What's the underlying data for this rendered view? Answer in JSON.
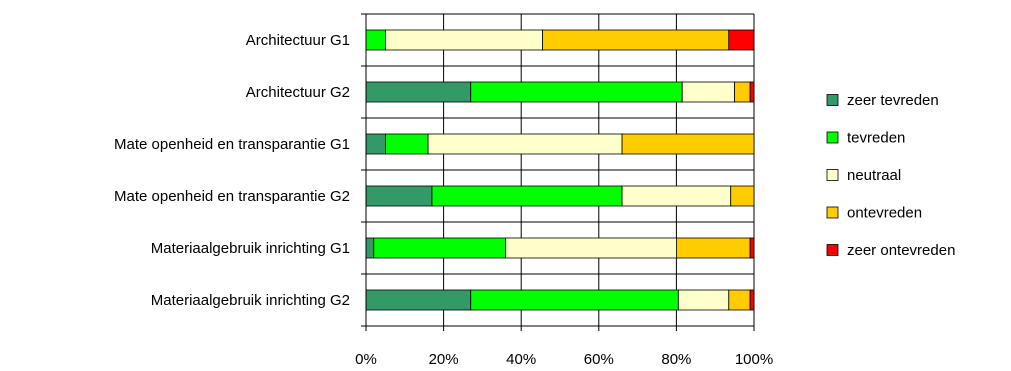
{
  "chart_data": {
    "type": "bar",
    "orientation": "horizontal",
    "stacked": "percent",
    "categories": [
      "Architectuur G1",
      "Architectuur G2",
      "Mate openheid en transparantie G1",
      "Mate openheid en transparantie G2",
      "Materiaalgebruik inrichting G1",
      "Materiaalgebruik inrichting G2"
    ],
    "series": [
      {
        "name": "zeer tevreden",
        "color": "#339966",
        "values": [
          0,
          27,
          5,
          17,
          2,
          27
        ]
      },
      {
        "name": "tevreden",
        "color": "#00ff00",
        "values": [
          5,
          54.5,
          11,
          49,
          34,
          53.5
        ]
      },
      {
        "name": "neutraal",
        "color": "#ffffcc",
        "values": [
          40.5,
          13.5,
          50,
          28,
          44,
          13
        ]
      },
      {
        "name": "ontevreden",
        "color": "#ffcc00",
        "values": [
          48,
          4,
          34,
          6,
          19,
          5.5
        ]
      },
      {
        "name": "zeer ontevreden",
        "color": "#ff0000",
        "values": [
          6.5,
          1,
          0,
          0,
          1,
          1
        ]
      }
    ],
    "x_ticks": [
      "0%",
      "20%",
      "40%",
      "60%",
      "80%",
      "100%"
    ],
    "xlim": [
      0,
      100
    ],
    "grid": "vertical",
    "legend_position": "right"
  }
}
